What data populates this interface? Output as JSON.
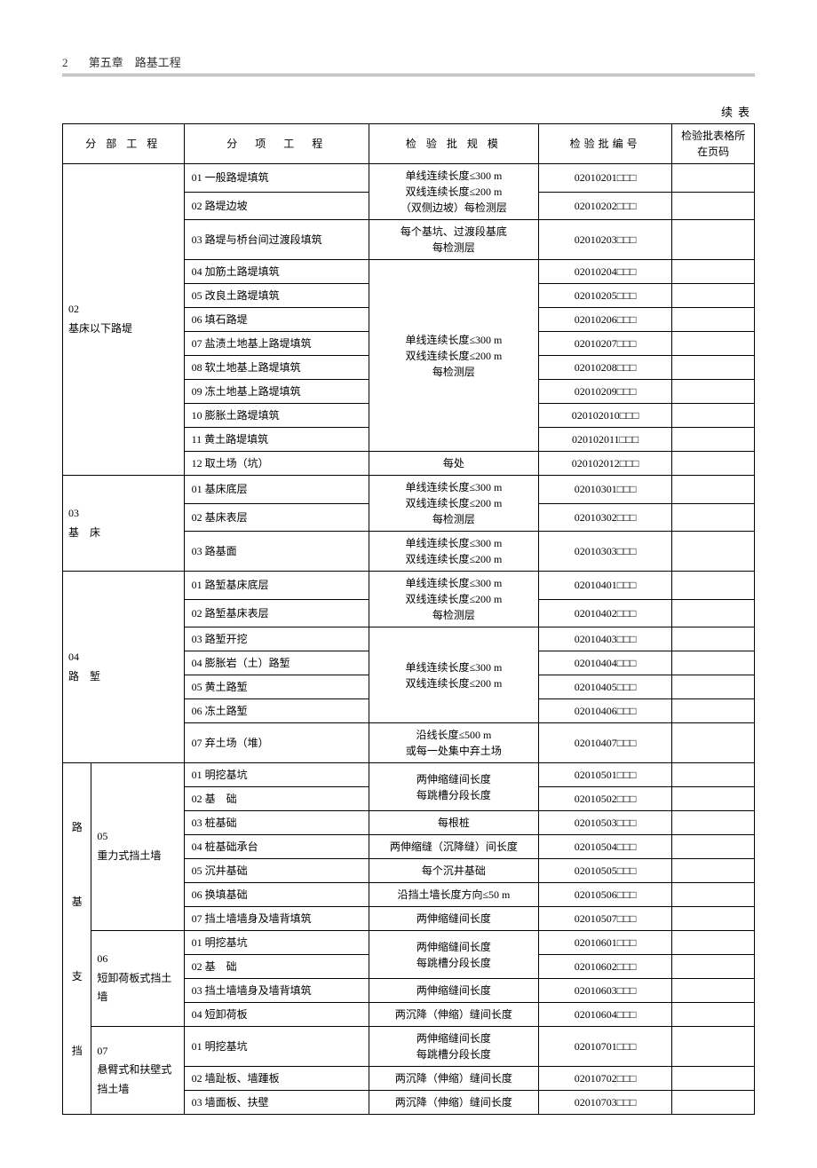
{
  "header": {
    "page_num": "2",
    "chapter": "第五章　路基工程"
  },
  "continue_label": "续表",
  "columns": {
    "c1": "分 部 工 程",
    "c2": "分　项　工　程",
    "c3": "检 验 批 规 模",
    "c4": "检验批编号",
    "c5": "检验批表格所在页码"
  },
  "section02": {
    "label": "02\n基床以下路堤",
    "scale_1_2": "单线连续长度≤300 m\n双线连续长度≤200 m\n（双侧边坡）每检测层",
    "scale_3": "每个基坑、过渡段基底\n每检测层",
    "scale_4_11": "单线连续长度≤300 m\n双线连续长度≤200 m\n每检测层",
    "scale_12": "每处",
    "r1": {
      "item": "01 一般路堤填筑",
      "code": "02010201□□□"
    },
    "r2": {
      "item": "02 路堤边坡",
      "code": "02010202□□□"
    },
    "r3": {
      "item": "03 路堤与桥台间过渡段填筑",
      "code": "02010203□□□"
    },
    "r4": {
      "item": "04 加筋土路堤填筑",
      "code": "02010204□□□"
    },
    "r5": {
      "item": "05 改良土路堤填筑",
      "code": "02010205□□□"
    },
    "r6": {
      "item": "06 填石路堤",
      "code": "02010206□□□"
    },
    "r7": {
      "item": "07 盐渍土地基上路堤填筑",
      "code": "02010207□□□"
    },
    "r8": {
      "item": "08 软土地基上路堤填筑",
      "code": "02010208□□□"
    },
    "r9": {
      "item": "09 冻土地基上路堤填筑",
      "code": "02010209□□□"
    },
    "r10": {
      "item": "10 膨胀土路堤填筑",
      "code": "020102010□□□"
    },
    "r11": {
      "item": "11 黄土路堤填筑",
      "code": "020102011□□□"
    },
    "r12": {
      "item": "12 取土场（坑）",
      "code": "020102012□□□"
    }
  },
  "section03": {
    "label": "03\n基　床",
    "scale_1_2": "单线连续长度≤300 m\n双线连续长度≤200 m\n每检测层",
    "scale_3": "单线连续长度≤300 m\n双线连续长度≤200 m",
    "r1": {
      "item": "01 基床底层",
      "code": "02010301□□□"
    },
    "r2": {
      "item": "02 基床表层",
      "code": "02010302□□□"
    },
    "r3": {
      "item": "03 路基面",
      "code": "02010303□□□"
    }
  },
  "section04": {
    "label": "04\n路　堑",
    "scale_1_2": "单线连续长度≤300 m\n双线连续长度≤200 m\n每检测层",
    "scale_3_6": "单线连续长度≤300 m\n双线连续长度≤200 m",
    "scale_7": "沿线长度≤500 m\n或每一处集中弃土场",
    "r1": {
      "item": "01 路堑基床底层",
      "code": "02010401□□□"
    },
    "r2": {
      "item": "02 路堑基床表层",
      "code": "02010402□□□"
    },
    "r3": {
      "item": "03 路堑开挖",
      "code": "02010403□□□"
    },
    "r4": {
      "item": "04 膨胀岩（土）路堑",
      "code": "02010404□□□"
    },
    "r5": {
      "item": "05 黄土路堑",
      "code": "02010405□□□"
    },
    "r6": {
      "item": "06 冻土路堑",
      "code": "02010406□□□"
    },
    "r7": {
      "item": "07 弃土场（堆）",
      "code": "02010407□□□"
    }
  },
  "vertical_label": "路　基　支　挡",
  "section05": {
    "label": "05\n重力式挡土墙",
    "scale_1_2": "两伸缩缝间长度\n每跳槽分段长度",
    "r1": {
      "item": "01 明挖基坑",
      "code": "02010501□□□"
    },
    "r2": {
      "item": "02 基　础",
      "code": "02010502□□□"
    },
    "r3": {
      "item": "03 桩基础",
      "scale": "每根桩",
      "code": "02010503□□□"
    },
    "r4": {
      "item": "04 桩基础承台",
      "scale": "两伸缩缝（沉降缝）间长度",
      "code": "02010504□□□"
    },
    "r5": {
      "item": "05 沉井基础",
      "scale": "每个沉井基础",
      "code": "02010505□□□"
    },
    "r6": {
      "item": "06 换填基础",
      "scale": "沿挡土墙长度方向≤50 m",
      "code": "02010506□□□"
    },
    "r7": {
      "item": "07 挡土墙墙身及墙背填筑",
      "scale": "两伸缩缝间长度",
      "code": "02010507□□□"
    }
  },
  "section06": {
    "label": "06\n短卸荷板式挡土墙",
    "scale_1_2": "两伸缩缝间长度\n每跳槽分段长度",
    "r1": {
      "item": "01 明挖基坑",
      "code": "02010601□□□"
    },
    "r2": {
      "item": "02 基　础",
      "code": "02010602□□□"
    },
    "r3": {
      "item": "03 挡土墙墙身及墙背填筑",
      "scale": "两伸缩缝间长度",
      "code": "02010603□□□"
    },
    "r4": {
      "item": "04 短卸荷板",
      "scale": "两沉降（伸缩）缝间长度",
      "code": "02010604□□□"
    }
  },
  "section07": {
    "label": "07\n悬臂式和扶壁式挡土墙",
    "r1": {
      "item": "01 明挖基坑",
      "scale": "两伸缩缝间长度\n每跳槽分段长度",
      "code": "02010701□□□"
    },
    "r2": {
      "item": "02 墙趾板、墙踵板",
      "scale": "两沉降（伸缩）缝间长度",
      "code": "02010702□□□"
    },
    "r3": {
      "item": "03 墙面板、扶壁",
      "scale": "两沉降（伸缩）缝间长度",
      "code": "02010703□□□"
    }
  }
}
